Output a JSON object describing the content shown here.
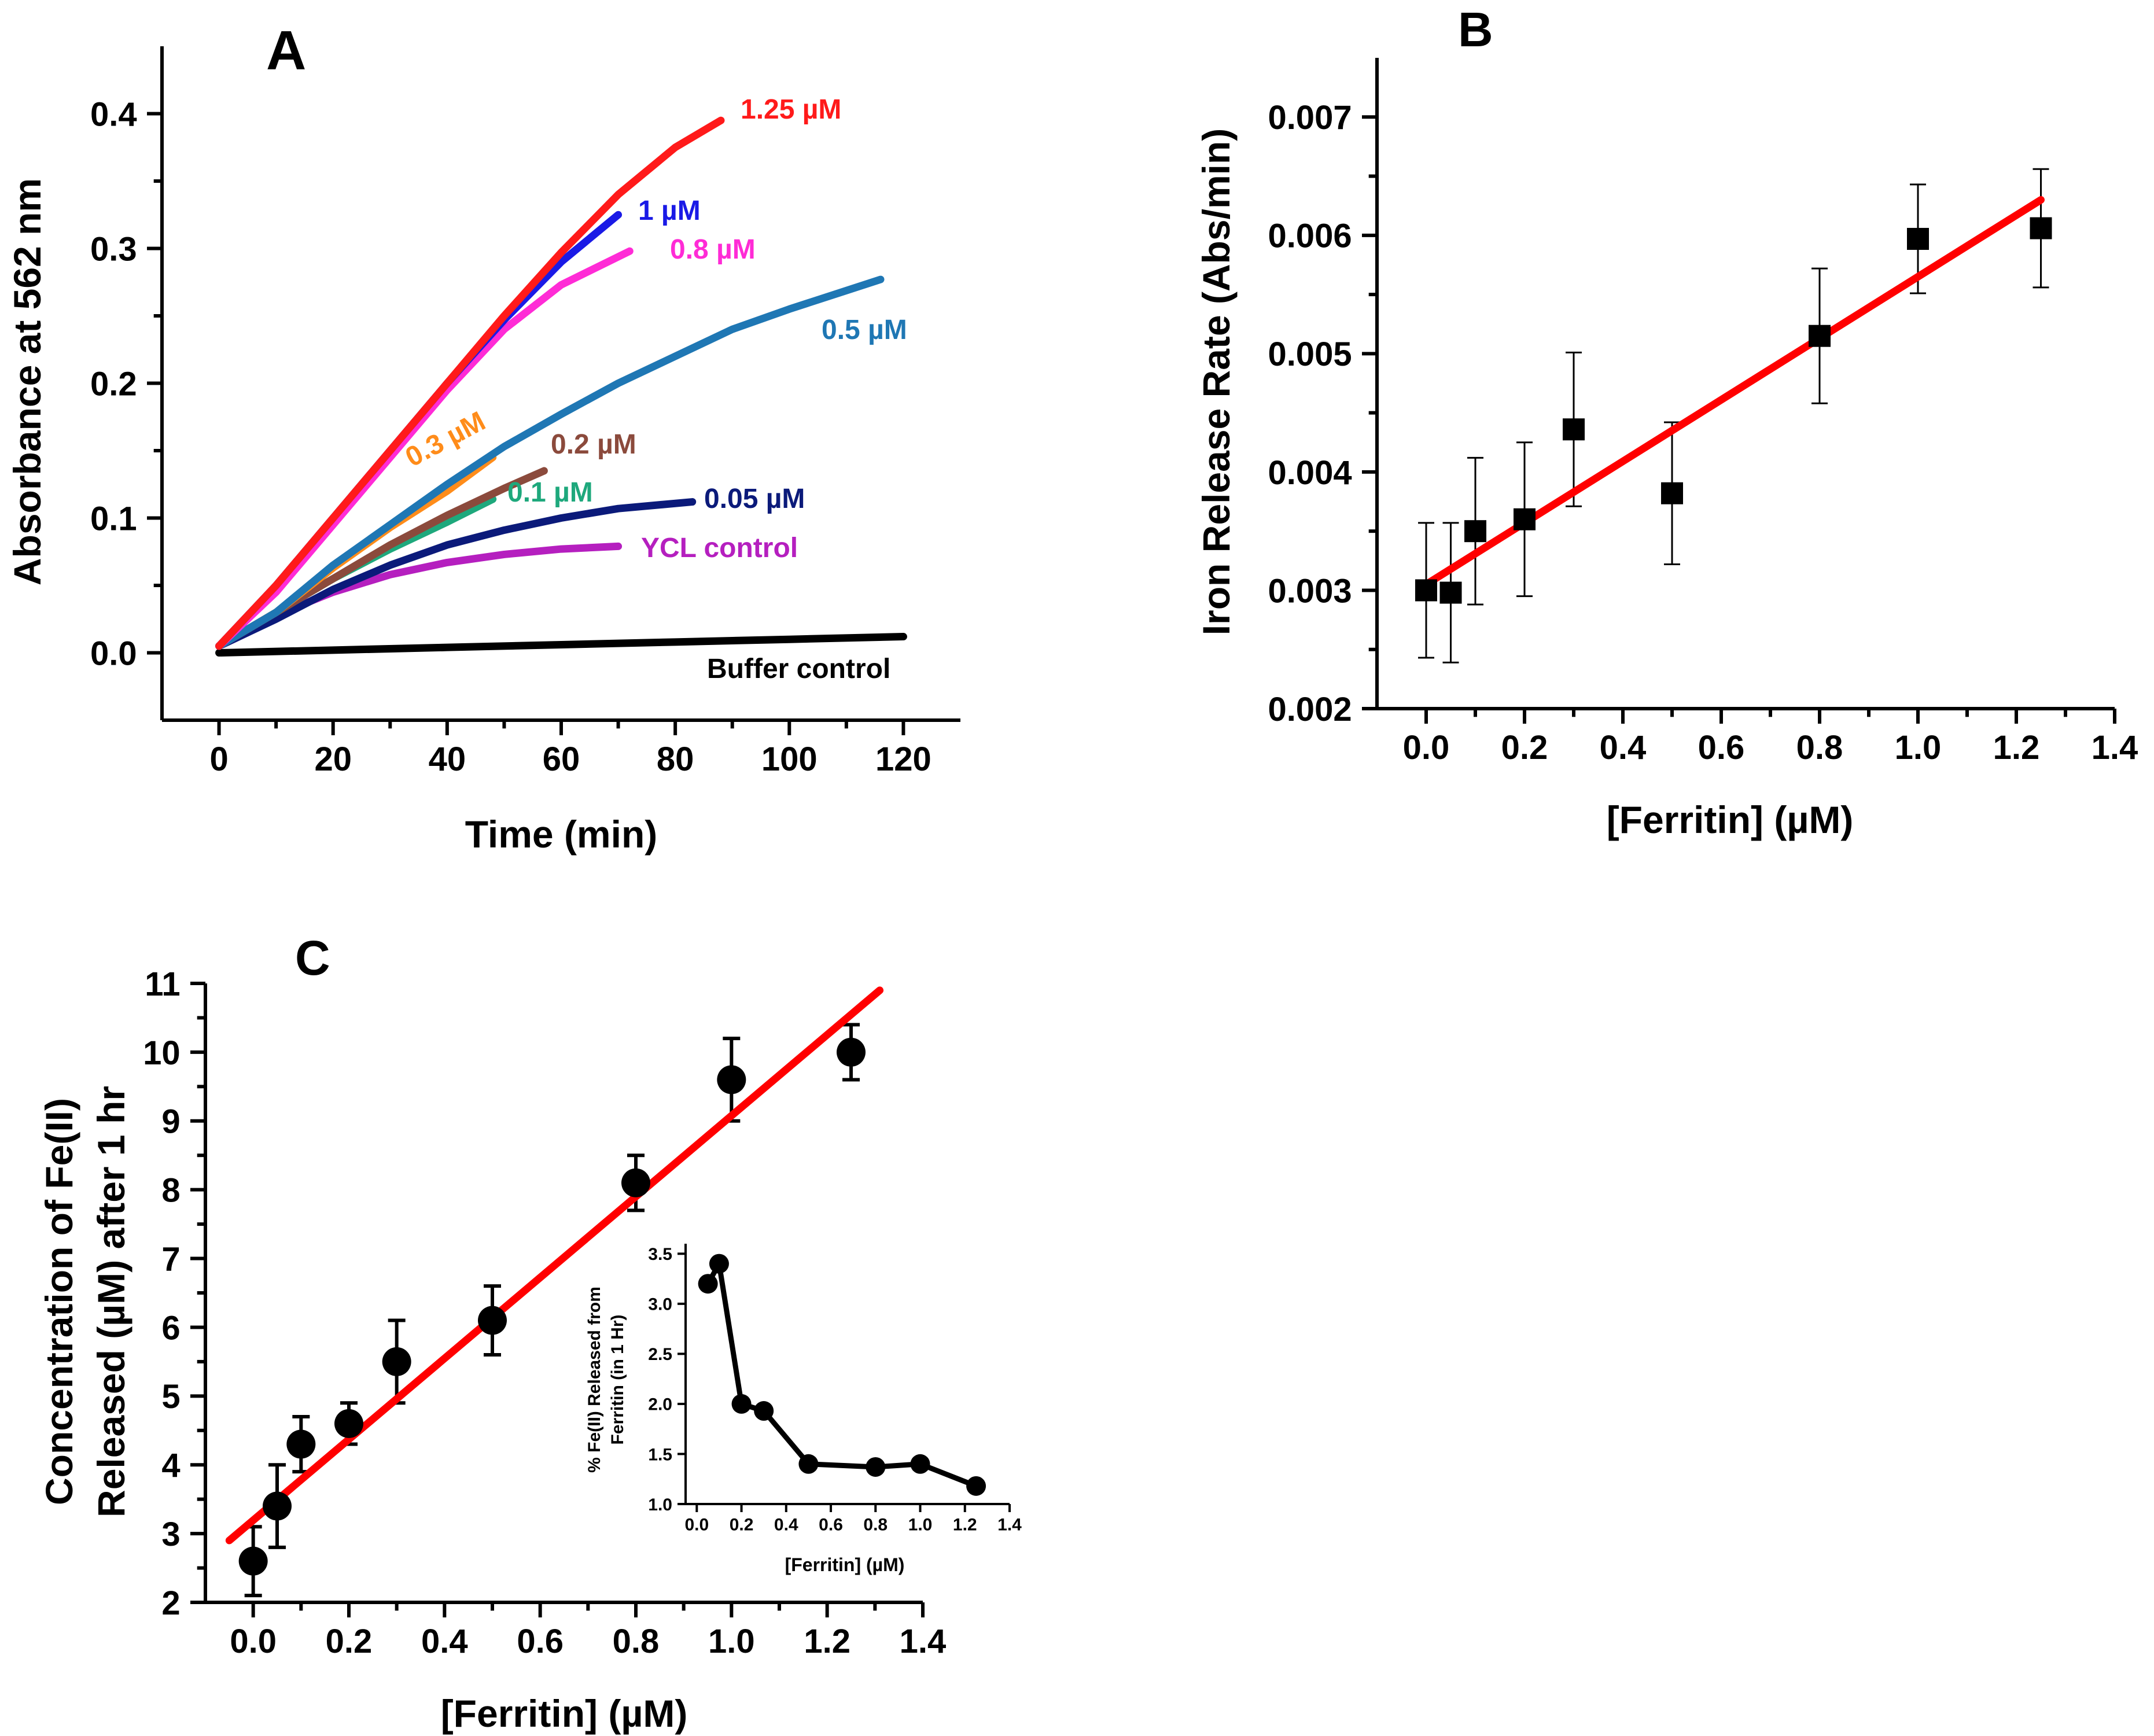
{
  "chart_data": [
    {
      "panel": "A",
      "type": "line",
      "xlabel": "Time (min)",
      "ylabel": "Absorbance at 562 nm",
      "xlim": [
        -10,
        130
      ],
      "ylim": [
        -0.05,
        0.45
      ],
      "xticks": [
        0,
        20,
        40,
        60,
        80,
        100,
        120
      ],
      "yticks": [
        0.0,
        0.1,
        0.2,
        0.3,
        0.4
      ],
      "xtick_labels": [
        "0",
        "20",
        "40",
        "60",
        "80",
        "100",
        "120"
      ],
      "ytick_labels": [
        "0.0",
        "0.1",
        "0.2",
        "0.3",
        "0.4"
      ],
      "series": [
        {
          "name": "Buffer control",
          "color": "#000000",
          "x": [
            0,
            20,
            40,
            60,
            80,
            100,
            120
          ],
          "y": [
            0.0,
            0.002,
            0.004,
            0.006,
            0.008,
            0.01,
            0.012
          ]
        },
        {
          "name": "YCL control",
          "color": "#b51fbf",
          "x": [
            0,
            5,
            10,
            20,
            30,
            40,
            50,
            60,
            70
          ],
          "y": [
            0.005,
            0.015,
            0.028,
            0.045,
            0.058,
            0.067,
            0.073,
            0.077,
            0.079
          ]
        },
        {
          "name": "0.05 µM",
          "color": "#0b1a7a",
          "x": [
            0,
            10,
            20,
            30,
            40,
            50,
            60,
            70,
            83
          ],
          "y": [
            0.005,
            0.025,
            0.047,
            0.065,
            0.08,
            0.091,
            0.1,
            0.107,
            0.112
          ]
        },
        {
          "name": "0.1 µM",
          "color": "#1ea87c",
          "x": [
            0,
            10,
            20,
            30,
            40,
            48
          ],
          "y": [
            0.005,
            0.03,
            0.055,
            0.077,
            0.097,
            0.114
          ]
        },
        {
          "name": "0.2 µM",
          "color": "#8b4a3c",
          "x": [
            0,
            10,
            20,
            30,
            40,
            50,
            57
          ],
          "y": [
            0.005,
            0.03,
            0.055,
            0.08,
            0.102,
            0.122,
            0.135
          ]
        },
        {
          "name": "0.3 µM",
          "color": "#ff8c1a",
          "x": [
            0,
            10,
            20,
            30,
            40,
            48
          ],
          "y": [
            0.005,
            0.03,
            0.063,
            0.093,
            0.12,
            0.145
          ]
        },
        {
          "name": "0.5 µM",
          "color": "#1f77b4",
          "x": [
            0,
            10,
            20,
            30,
            40,
            50,
            60,
            70,
            80,
            90,
            100,
            116
          ],
          "y": [
            0.005,
            0.03,
            0.065,
            0.095,
            0.125,
            0.153,
            0.177,
            0.2,
            0.22,
            0.24,
            0.255,
            0.277
          ]
        },
        {
          "name": "0.8 µM",
          "color": "#ff2bd6",
          "x": [
            0,
            10,
            20,
            30,
            40,
            50,
            60,
            72
          ],
          "y": [
            0.005,
            0.045,
            0.095,
            0.145,
            0.195,
            0.24,
            0.273,
            0.298
          ]
        },
        {
          "name": "1 µM",
          "color": "#1a1ae6",
          "x": [
            0,
            10,
            20,
            30,
            40,
            50,
            60,
            70
          ],
          "y": [
            0.005,
            0.05,
            0.1,
            0.15,
            0.2,
            0.247,
            0.29,
            0.325
          ]
        },
        {
          "name": "1.25 µM",
          "color": "#ff1a1a",
          "x": [
            0,
            10,
            20,
            30,
            40,
            50,
            60,
            70,
            80,
            88
          ],
          "y": [
            0.005,
            0.05,
            0.1,
            0.15,
            0.2,
            0.25,
            0.297,
            0.34,
            0.375,
            0.395
          ]
        }
      ]
    },
    {
      "panel": "B",
      "type": "scatter",
      "xlabel": "[Ferritin] (µM)",
      "ylabel": "Iron Release Rate (Abs/min)",
      "xlim": [
        -0.1,
        1.4
      ],
      "ylim": [
        0.002,
        0.0075
      ],
      "xticks": [
        0.0,
        0.2,
        0.4,
        0.6,
        0.8,
        1.0,
        1.2,
        1.4
      ],
      "yticks": [
        0.002,
        0.003,
        0.004,
        0.005,
        0.006,
        0.007
      ],
      "xtick_labels": [
        "0.0",
        "0.2",
        "0.4",
        "0.6",
        "0.8",
        "1.0",
        "1.2",
        "1.4"
      ],
      "ytick_labels": [
        "0.002",
        "0.003",
        "0.004",
        "0.005",
        "0.006",
        "0.007"
      ],
      "x": [
        0.0,
        0.05,
        0.1,
        0.2,
        0.3,
        0.5,
        0.8,
        1.0,
        1.25
      ],
      "y": [
        0.003,
        0.00298,
        0.0035,
        0.0036,
        0.00436,
        0.00382,
        0.00515,
        0.00597,
        0.00606
      ],
      "err": [
        0.00057,
        0.00059,
        0.00062,
        0.00065,
        0.00065,
        0.0006,
        0.00057,
        0.00046,
        0.0005
      ],
      "fit": {
        "x": [
          0.0,
          1.25
        ],
        "y": [
          0.00305,
          0.0063
        ],
        "color": "#ff0000"
      }
    },
    {
      "panel": "C",
      "type": "scatter",
      "xlabel": "[Ferritin] (µM)",
      "ylabel_line1": "Concentration of Fe(II)",
      "ylabel_line2": "Released (µM) after 1 hr",
      "xlim": [
        -0.1,
        1.4
      ],
      "ylim": [
        2,
        11
      ],
      "xticks": [
        0.0,
        0.2,
        0.4,
        0.6,
        0.8,
        1.0,
        1.2,
        1.4
      ],
      "yticks": [
        2,
        3,
        4,
        5,
        6,
        7,
        8,
        9,
        10,
        11
      ],
      "xtick_labels": [
        "0.0",
        "0.2",
        "0.4",
        "0.6",
        "0.8",
        "1.0",
        "1.2",
        "1.4"
      ],
      "ytick_labels": [
        "2",
        "3",
        "4",
        "5",
        "6",
        "7",
        "8",
        "9",
        "10",
        "11"
      ],
      "x": [
        0.0,
        0.05,
        0.1,
        0.2,
        0.3,
        0.5,
        0.8,
        1.0,
        1.25
      ],
      "y": [
        2.6,
        3.4,
        4.3,
        4.6,
        5.5,
        6.1,
        8.1,
        9.6,
        10.0
      ],
      "err": [
        0.5,
        0.6,
        0.4,
        0.3,
        0.6,
        0.5,
        0.4,
        0.6,
        0.4
      ],
      "fit": {
        "x": [
          -0.05,
          1.31
        ],
        "y": [
          2.9,
          10.9
        ],
        "color": "#ff0000"
      }
    },
    {
      "panel": "C-inset",
      "type": "line",
      "xlabel": "[Ferritin] (µM)",
      "ylabel_line1": "% Fe(II) Released from",
      "ylabel_line2": "Ferritin (in 1 Hr)",
      "xlim": [
        -0.05,
        1.4
      ],
      "ylim": [
        1.0,
        3.6
      ],
      "xticks": [
        0.0,
        0.2,
        0.4,
        0.6,
        0.8,
        1.0,
        1.2,
        1.4
      ],
      "yticks": [
        1.0,
        1.5,
        2.0,
        2.5,
        3.0,
        3.5
      ],
      "xtick_labels": [
        "0.0",
        "0.2",
        "0.4",
        "0.6",
        "0.8",
        "1.0",
        "1.2",
        "1.4"
      ],
      "ytick_labels": [
        "1.0",
        "1.5",
        "2.0",
        "2.5",
        "3.0",
        "3.5"
      ],
      "x": [
        0.05,
        0.1,
        0.2,
        0.3,
        0.5,
        0.8,
        1.0,
        1.25
      ],
      "y": [
        3.2,
        3.4,
        2.0,
        1.93,
        1.4,
        1.37,
        1.4,
        1.18
      ]
    }
  ],
  "labels": {
    "panel_a": "A",
    "panel_b": "B",
    "panel_c": "C"
  }
}
